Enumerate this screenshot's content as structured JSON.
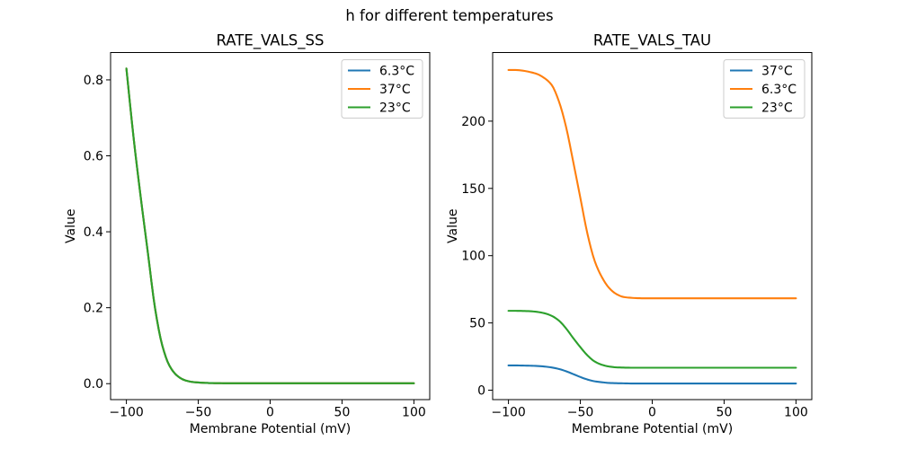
{
  "figure": {
    "suptitle": "h for different temperatures",
    "background": "#ffffff",
    "text_color": "#000000",
    "spine_color": "#000000",
    "legend_border_color": "#cccccc"
  },
  "chart_data": [
    {
      "id": "ss",
      "type": "line",
      "title": "RATE_VALS_SS",
      "xlabel": "Membrane Potential (mV)",
      "ylabel": "Value",
      "xlim": [
        -111,
        111
      ],
      "ylim": [
        -0.042,
        0.872
      ],
      "xticks": [
        -100,
        -50,
        0,
        50,
        100
      ],
      "xtick_labels": [
        "−100",
        "−50",
        "0",
        "50",
        "100"
      ],
      "yticks": [
        0.0,
        0.2,
        0.4,
        0.6,
        0.8
      ],
      "ytick_labels": [
        "0.0",
        "0.2",
        "0.4",
        "0.6",
        "0.8"
      ],
      "grid": false,
      "legend_position": "upper right",
      "x": [
        -100,
        -95,
        -90,
        -85,
        -80,
        -75,
        -70,
        -65,
        -60,
        -55,
        -50,
        -45,
        -40,
        -35,
        -30,
        -25,
        -20,
        -15,
        -10,
        -5,
        0,
        5,
        10,
        15,
        20,
        25,
        30,
        35,
        40,
        45,
        50,
        55,
        60,
        65,
        70,
        75,
        80,
        85,
        90,
        95,
        100
      ],
      "series": [
        {
          "name": "6.3°C",
          "color": "#1f77b4",
          "values": [
            0.83,
            0.648,
            0.49,
            0.343,
            0.197,
            0.1,
            0.047,
            0.022,
            0.01,
            0.005,
            0.003,
            0.002,
            0.0015,
            0.0012,
            0.001,
            0.001,
            0.001,
            0.001,
            0.001,
            0.001,
            0.001,
            0.001,
            0.001,
            0.001,
            0.001,
            0.001,
            0.001,
            0.001,
            0.001,
            0.001,
            0.001,
            0.001,
            0.001,
            0.001,
            0.001,
            0.001,
            0.001,
            0.001,
            0.001,
            0.001,
            0.001
          ]
        },
        {
          "name": "37°C",
          "color": "#ff7f0e",
          "values": [
            0.83,
            0.648,
            0.49,
            0.343,
            0.197,
            0.1,
            0.047,
            0.022,
            0.01,
            0.005,
            0.003,
            0.002,
            0.0015,
            0.0012,
            0.001,
            0.001,
            0.001,
            0.001,
            0.001,
            0.001,
            0.001,
            0.001,
            0.001,
            0.001,
            0.001,
            0.001,
            0.001,
            0.001,
            0.001,
            0.001,
            0.001,
            0.001,
            0.001,
            0.001,
            0.001,
            0.001,
            0.001,
            0.001,
            0.001,
            0.001,
            0.001
          ]
        },
        {
          "name": "23°C",
          "color": "#2ca02c",
          "values": [
            0.83,
            0.648,
            0.49,
            0.343,
            0.197,
            0.1,
            0.047,
            0.022,
            0.01,
            0.005,
            0.003,
            0.002,
            0.0015,
            0.0012,
            0.001,
            0.001,
            0.001,
            0.001,
            0.001,
            0.001,
            0.001,
            0.001,
            0.001,
            0.001,
            0.001,
            0.001,
            0.001,
            0.001,
            0.001,
            0.001,
            0.001,
            0.001,
            0.001,
            0.001,
            0.001,
            0.001,
            0.001,
            0.001,
            0.001,
            0.001,
            0.001
          ]
        }
      ]
    },
    {
      "id": "tau",
      "type": "line",
      "title": "RATE_VALS_TAU",
      "xlabel": "Membrane Potential (mV)",
      "ylabel": "Value",
      "xlim": [
        -111,
        111
      ],
      "ylim": [
        -7,
        251
      ],
      "xticks": [
        -100,
        -50,
        0,
        50,
        100
      ],
      "xtick_labels": [
        "−100",
        "−50",
        "0",
        "50",
        "100"
      ],
      "yticks": [
        0,
        50,
        100,
        150,
        200
      ],
      "ytick_labels": [
        "0",
        "50",
        "100",
        "150",
        "200"
      ],
      "grid": false,
      "legend_position": "upper right",
      "x": [
        -100,
        -95,
        -90,
        -85,
        -80,
        -75,
        -70,
        -65,
        -60,
        -55,
        -50,
        -45,
        -40,
        -35,
        -30,
        -25,
        -20,
        -15,
        -10,
        -5,
        0,
        5,
        10,
        15,
        20,
        25,
        30,
        35,
        40,
        45,
        50,
        55,
        60,
        65,
        70,
        75,
        80,
        85,
        90,
        95,
        100
      ],
      "series": [
        {
          "name": "37°C",
          "color": "#1f77b4",
          "values": [
            18.4,
            18.4,
            18.3,
            18.2,
            18.0,
            17.6,
            16.9,
            15.8,
            14.1,
            12.0,
            9.8,
            7.9,
            6.6,
            5.9,
            5.4,
            5.2,
            5.1,
            5.0,
            5.0,
            5.0,
            5.0,
            5.0,
            5.0,
            5.0,
            5.0,
            5.0,
            5.0,
            5.0,
            5.0,
            5.0,
            5.0,
            5.0,
            5.0,
            5.0,
            5.0,
            5.0,
            5.0,
            5.0,
            5.0,
            5.0,
            5.0
          ]
        },
        {
          "name": "6.3°C",
          "color": "#ff7f0e",
          "values": [
            238,
            238,
            237.5,
            236.5,
            235,
            232,
            227,
            215,
            196,
            170,
            143,
            116,
            96,
            84,
            76,
            71.5,
            69.3,
            68.7,
            68.4,
            68.3,
            68.3,
            68.3,
            68.3,
            68.3,
            68.3,
            68.3,
            68.3,
            68.3,
            68.3,
            68.3,
            68.3,
            68.3,
            68.3,
            68.3,
            68.3,
            68.3,
            68.3,
            68.3,
            68.3,
            68.3,
            68.3
          ]
        },
        {
          "name": "23°C",
          "color": "#2ca02c",
          "values": [
            59,
            59,
            58.9,
            58.7,
            58.2,
            57.2,
            55.3,
            51.8,
            46.0,
            38.8,
            32.0,
            25.8,
            21.3,
            18.9,
            17.6,
            17.0,
            16.8,
            16.7,
            16.7,
            16.7,
            16.7,
            16.7,
            16.7,
            16.7,
            16.7,
            16.7,
            16.7,
            16.7,
            16.7,
            16.7,
            16.7,
            16.7,
            16.7,
            16.7,
            16.7,
            16.7,
            16.7,
            16.7,
            16.7,
            16.7,
            16.7
          ]
        }
      ]
    }
  ]
}
